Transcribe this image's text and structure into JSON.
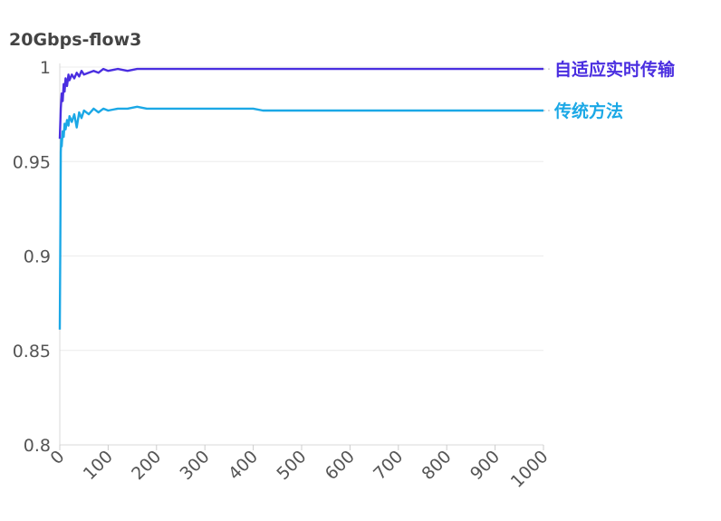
{
  "chart_data": {
    "type": "line",
    "title": "20Gbps-flow3",
    "xlabel": "",
    "ylabel": "",
    "xlim": [
      0,
      1000
    ],
    "ylim": [
      0.8,
      1.0
    ],
    "x_ticks": [
      0,
      100,
      200,
      300,
      400,
      500,
      600,
      700,
      800,
      900,
      1000
    ],
    "y_ticks": [
      0.8,
      0.85,
      0.9,
      0.95,
      1
    ],
    "y_tick_labels": [
      "0.8",
      "0.85",
      "0.9",
      "0.95",
      "1"
    ],
    "grid": true,
    "legend": "right, labels at line ends",
    "series": [
      {
        "name": "自适应实时传输",
        "color": "#4a2ee0",
        "x": [
          0,
          2,
          4,
          6,
          8,
          10,
          12,
          15,
          18,
          20,
          25,
          30,
          35,
          40,
          45,
          50,
          60,
          70,
          80,
          90,
          100,
          120,
          140,
          160,
          180,
          200,
          250,
          300,
          350,
          400,
          450,
          500,
          550,
          600,
          650,
          700,
          750,
          800,
          850,
          900,
          950,
          1000
        ],
        "y": [
          0.962,
          0.978,
          0.986,
          0.982,
          0.991,
          0.987,
          0.994,
          0.99,
          0.996,
          0.993,
          0.996,
          0.994,
          0.997,
          0.995,
          0.998,
          0.996,
          0.997,
          0.998,
          0.997,
          0.999,
          0.998,
          0.999,
          0.998,
          0.999,
          0.999,
          0.999,
          0.999,
          0.999,
          0.999,
          0.999,
          0.999,
          0.999,
          0.999,
          0.999,
          0.999,
          0.999,
          0.999,
          0.999,
          0.999,
          0.999,
          0.999,
          0.999
        ]
      },
      {
        "name": "传统方法",
        "color": "#1ba8e6",
        "x": [
          0,
          1,
          2,
          3,
          4,
          6,
          8,
          10,
          12,
          15,
          18,
          20,
          25,
          30,
          35,
          40,
          45,
          50,
          60,
          70,
          80,
          90,
          100,
          120,
          140,
          160,
          180,
          200,
          250,
          300,
          350,
          400,
          420,
          450,
          500,
          550,
          600,
          650,
          700,
          750,
          800,
          850,
          900,
          950,
          1000
        ],
        "y": [
          0.861,
          0.9,
          0.955,
          0.962,
          0.958,
          0.966,
          0.963,
          0.97,
          0.967,
          0.972,
          0.969,
          0.974,
          0.971,
          0.975,
          0.968,
          0.976,
          0.973,
          0.977,
          0.975,
          0.978,
          0.976,
          0.978,
          0.977,
          0.978,
          0.978,
          0.979,
          0.978,
          0.978,
          0.978,
          0.978,
          0.978,
          0.978,
          0.977,
          0.977,
          0.977,
          0.977,
          0.977,
          0.977,
          0.977,
          0.977,
          0.977,
          0.977,
          0.977,
          0.977,
          0.977
        ]
      }
    ]
  }
}
